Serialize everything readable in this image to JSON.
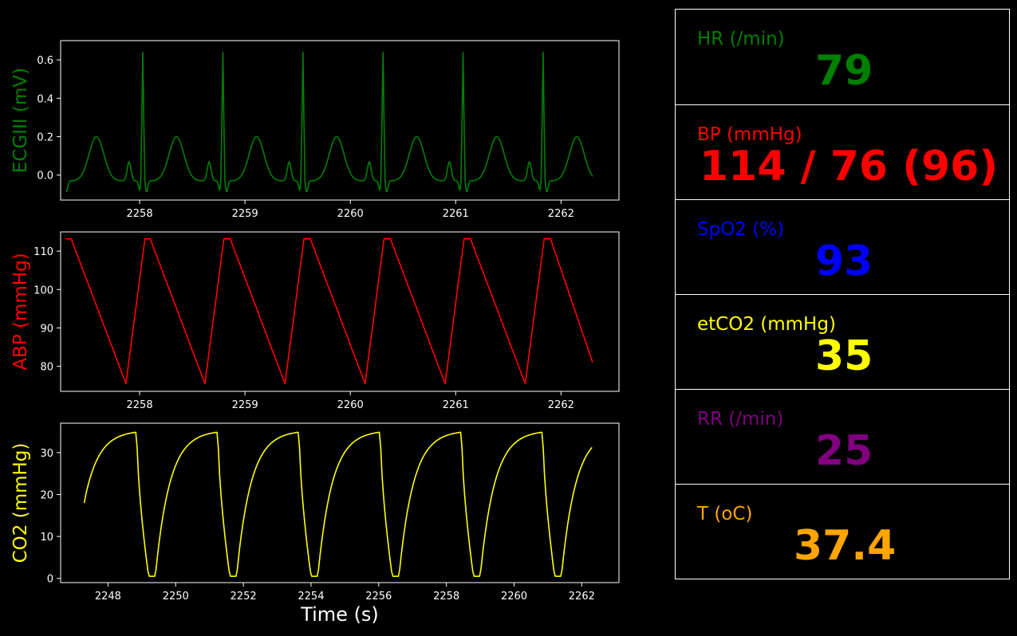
{
  "xlabel": "Time (s)",
  "vitals": [
    {
      "label": "HR (/min)",
      "value": "79",
      "color": "#008000"
    },
    {
      "label": "BP  (mmHg)",
      "value": "114 / 76 (96)",
      "color": "#ff0000"
    },
    {
      "label": "SpO2 (%)",
      "value": "93",
      "color": "#0000ff"
    },
    {
      "label": "etCO2 (mmHg)",
      "value": "35",
      "color": "#ffff00"
    },
    {
      "label": "RR (/min)",
      "value": "25",
      "color": "#800080"
    },
    {
      "label": "T (oC)",
      "value": "37.4",
      "color": "#ffa500"
    }
  ],
  "chart_data": [
    {
      "type": "line",
      "ylabel": "ECGIII (mV)",
      "color": "#008000",
      "xlim": [
        2257.25,
        2262.55
      ],
      "ylim": [
        -0.13,
        0.7
      ],
      "xticks": [
        2258,
        2259,
        2260,
        2261,
        2262
      ],
      "yticks": [
        0.0,
        0.2,
        0.4,
        0.6
      ],
      "ytick_labels": [
        "0.0",
        "0.2",
        "0.4",
        "0.6"
      ],
      "x_start": 2257.3,
      "x_end": 2262.3,
      "beat_period": 0.76,
      "first_r_peak": 2258.03,
      "r_amplitude": 0.67,
      "t_amplitude": 0.2,
      "baseline": -0.03
    },
    {
      "type": "line",
      "ylabel": "ABP (mmHg)",
      "color": "#ff0000",
      "xlim": [
        2257.25,
        2262.55
      ],
      "ylim": [
        73.5,
        115
      ],
      "xticks": [
        2258,
        2259,
        2260,
        2261,
        2262
      ],
      "yticks": [
        80,
        90,
        100,
        110
      ],
      "ytick_labels": [
        "80",
        "90",
        "100",
        "110"
      ],
      "x": [
        2257.3,
        2257.35,
        2257.87,
        2258.05,
        2258.1,
        2258.62,
        2258.8,
        2258.86,
        2259.38,
        2259.56,
        2259.62,
        2260.14,
        2260.32,
        2260.38,
        2260.9,
        2261.08,
        2261.14,
        2261.66,
        2261.84,
        2261.9,
        2262.3
      ],
      "y": [
        113.2,
        113.2,
        75.5,
        113.2,
        113.2,
        75.5,
        113.2,
        113.2,
        75.5,
        113.2,
        113.2,
        75.5,
        113.2,
        113.2,
        75.5,
        113.2,
        113.2,
        75.5,
        113.2,
        113.2,
        81
      ]
    },
    {
      "type": "line",
      "ylabel": "CO2 (mmHg)",
      "color": "#ffff00",
      "xlim": [
        2246.6,
        2263.1
      ],
      "ylim": [
        -1,
        37
      ],
      "xticks": [
        2248,
        2250,
        2252,
        2254,
        2256,
        2258,
        2260,
        2262
      ],
      "yticks": [
        0,
        10,
        20,
        30
      ],
      "ytick_labels": [
        "0",
        "10",
        "20",
        "30"
      ],
      "x_start": 2247.3,
      "x_end": 2262.3,
      "breath_period": 2.4,
      "first_drop": 2248.85,
      "max": 35.3,
      "min": 0.5,
      "start_value": 18
    }
  ]
}
